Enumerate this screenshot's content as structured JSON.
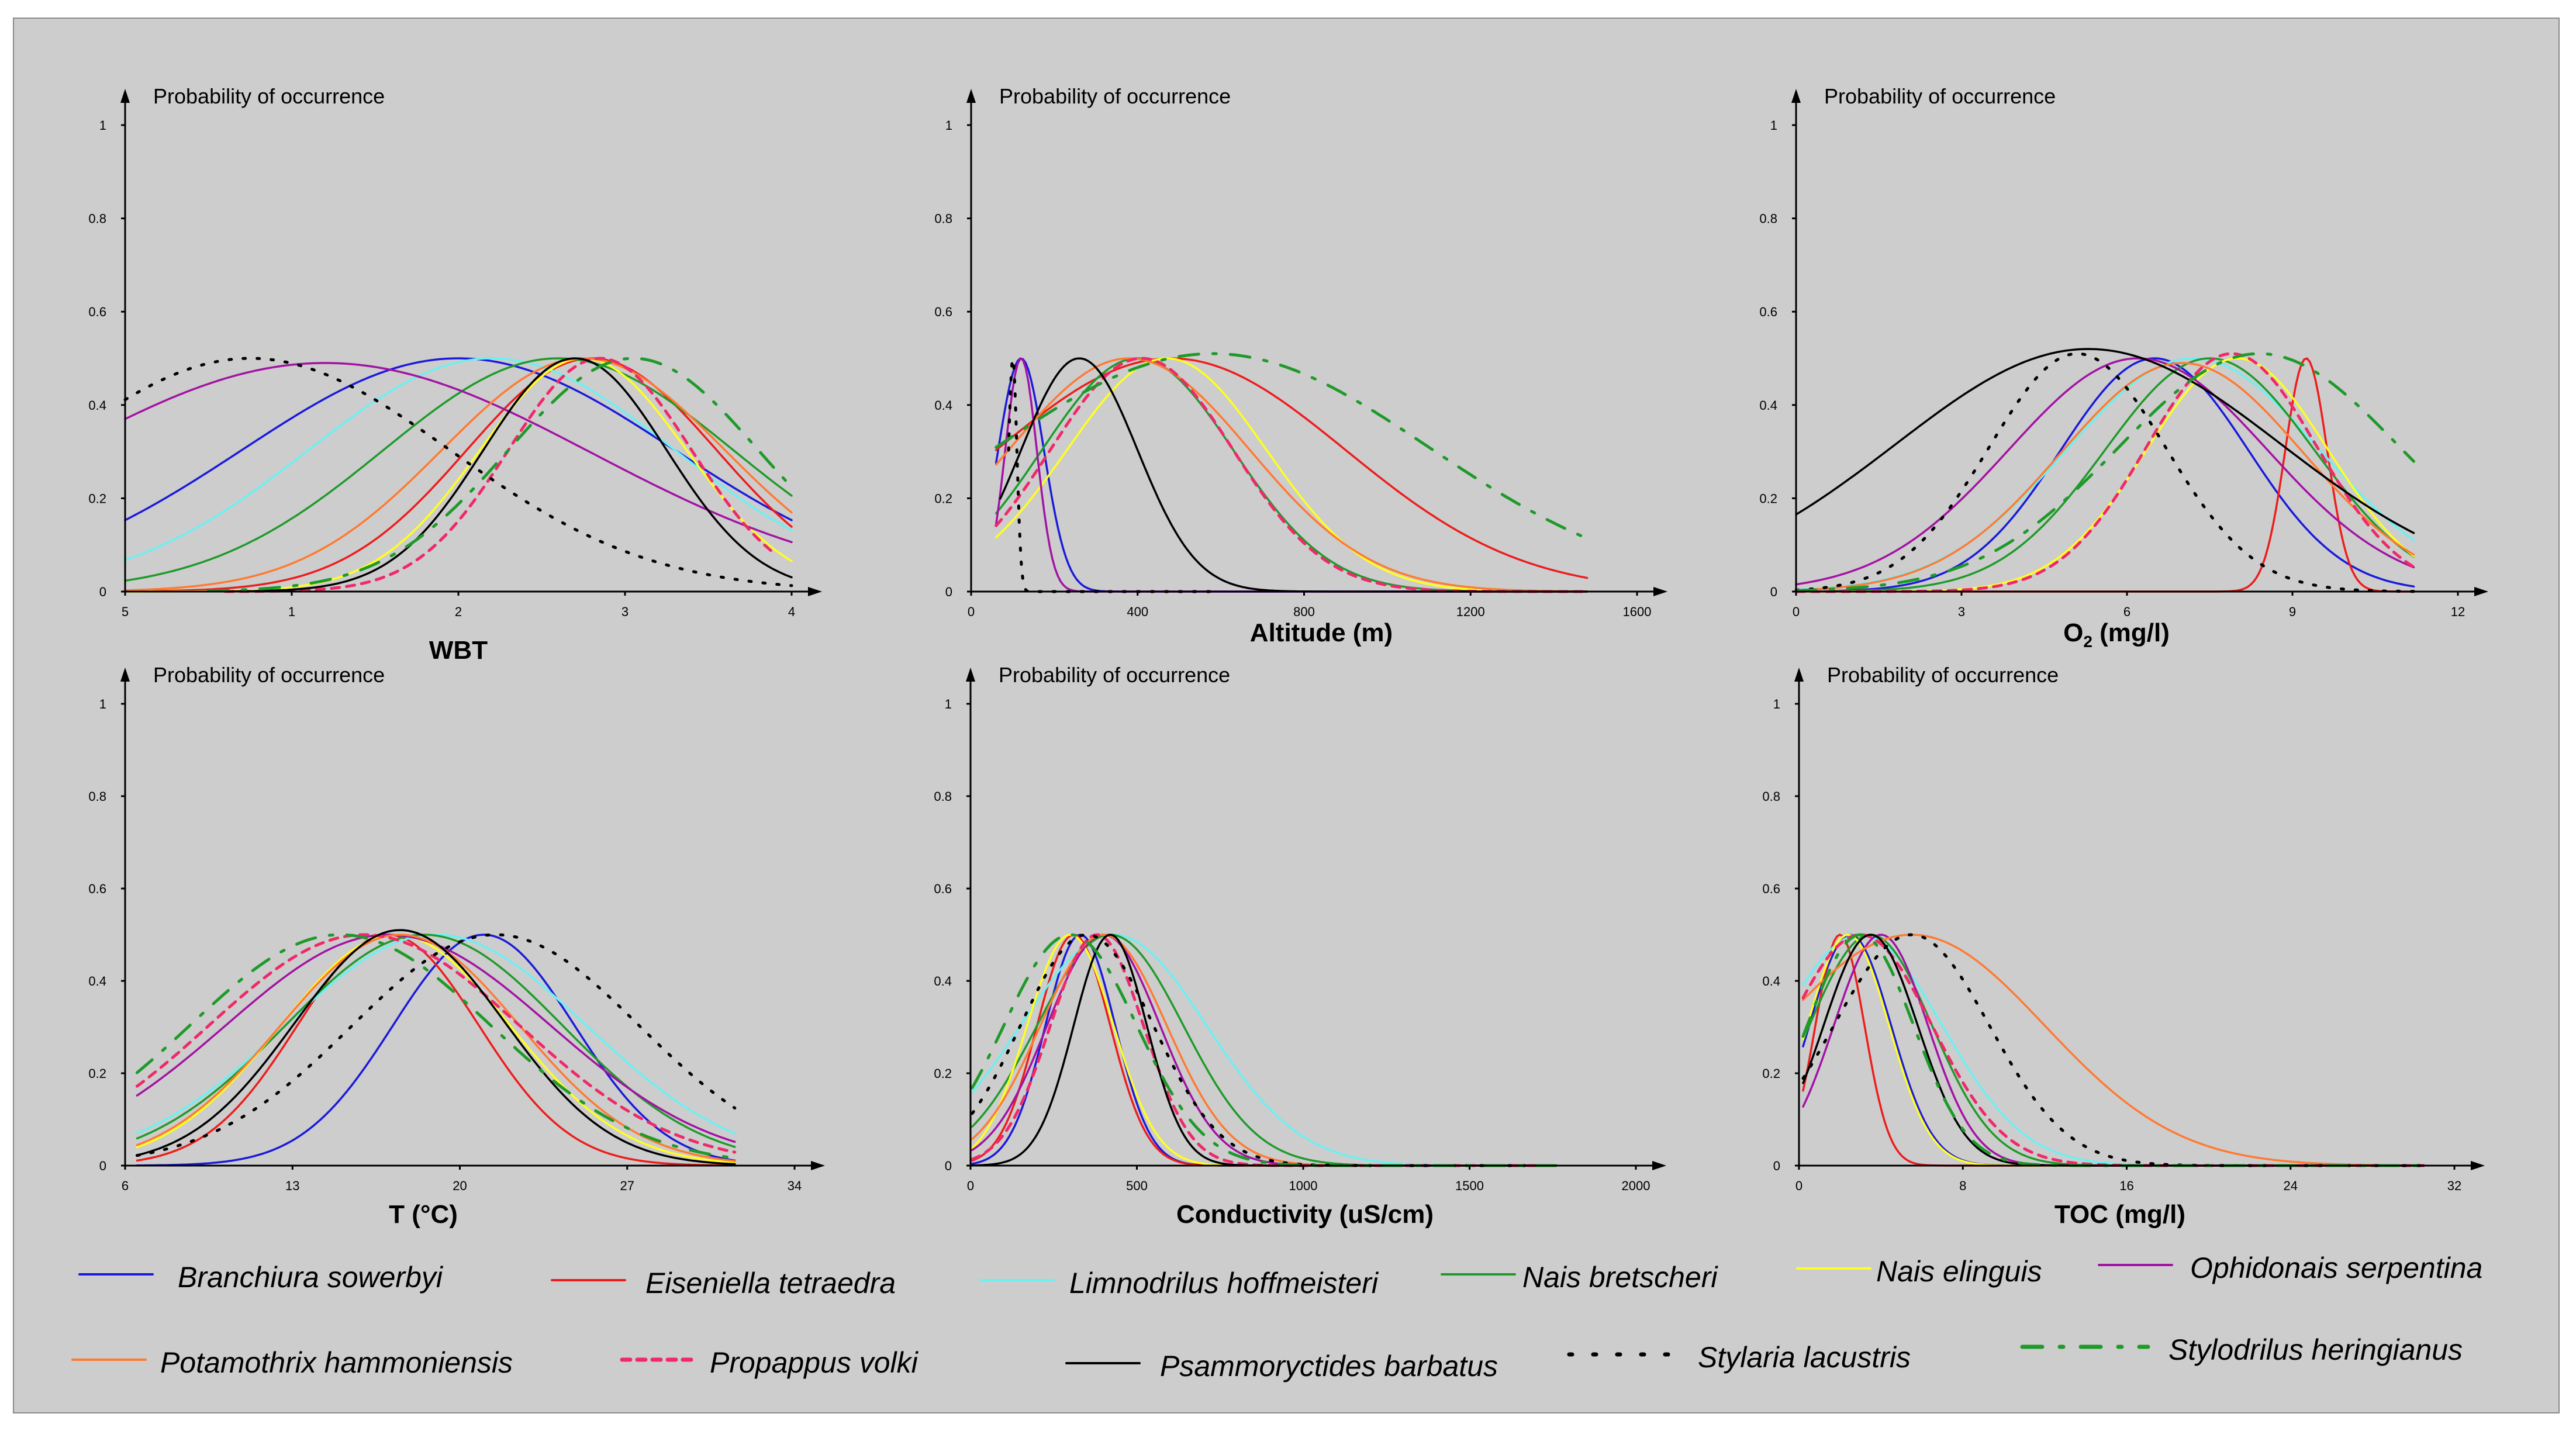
{
  "figure": {
    "y_axis_label": "Probability of occurrence",
    "legend": [
      {
        "name": "Branchiura sowerbyi",
        "color": "#1a1adb",
        "dash": "solid"
      },
      {
        "name": "Eiseniella tetraedra",
        "color": "#ee1c1c",
        "dash": "solid"
      },
      {
        "name": "Limnodrilus hoffmeisteri",
        "color": "#6cf0f2",
        "dash": "solid"
      },
      {
        "name": "Nais bretscheri",
        "color": "#1f9a2a",
        "dash": "solid"
      },
      {
        "name": "Nais elinguis",
        "color": "#ffff1f",
        "dash": "solid"
      },
      {
        "name": "Ophidonais serpentina",
        "color": "#a312a3",
        "dash": "solid"
      },
      {
        "name": "Potamothrix hammoniensis",
        "color": "#ff7a33",
        "dash": "solid"
      },
      {
        "name": "Propappus volki",
        "color": "#ee2a6a",
        "dash": "dash"
      },
      {
        "name": "Psammoryctides barbatus",
        "color": "#000000",
        "dash": "solid"
      },
      {
        "name": "Stylaria lacustris",
        "color": "#000000",
        "dash": "dot"
      },
      {
        "name": "Stylodrilus heringianus",
        "color": "#1f9a2a",
        "dash": "dashdot"
      }
    ]
  },
  "chart_data": [
    {
      "type": "line",
      "title": "",
      "xlabel": "WBT",
      "ylabel": "Probability of occurrence",
      "xlim": [
        0,
        4
      ],
      "ylim": [
        0,
        1
      ],
      "x_ticks": [
        {
          "v": 0,
          "label": "5"
        },
        {
          "v": 1,
          "label": "1"
        },
        {
          "v": 2,
          "label": "2"
        },
        {
          "v": 3,
          "label": "3"
        },
        {
          "v": 4,
          "label": "4"
        }
      ],
      "y_ticks": [
        "0",
        "0.2",
        "0.4",
        "0.6",
        "0.8",
        "1"
      ],
      "series": [
        {
          "name": "Branchiura sowerbyi",
          "x_range": [
            0,
            4
          ],
          "peak": 0.5,
          "mu": 2.0,
          "sigma": 1.3
        },
        {
          "name": "Eiseniella tetraedra",
          "x_range": [
            0,
            4
          ],
          "peak": 0.5,
          "mu": 2.8,
          "sigma": 0.75
        },
        {
          "name": "Limnodrilus hoffmeisteri",
          "x_range": [
            0,
            4
          ],
          "peak": 0.5,
          "mu": 2.2,
          "sigma": 1.1
        },
        {
          "name": "Nais bretscheri",
          "x_range": [
            0,
            4
          ],
          "peak": 0.5,
          "mu": 2.6,
          "sigma": 1.05
        },
        {
          "name": "Nais elinguis",
          "x_range": [
            0,
            4
          ],
          "peak": 0.5,
          "mu": 2.75,
          "sigma": 0.62
        },
        {
          "name": "Ophidonais serpentina",
          "x_range": [
            0,
            4
          ],
          "peak": 0.49,
          "mu": 1.2,
          "sigma": 1.6
        },
        {
          "name": "Potamothrix hammoniensis",
          "x_range": [
            0,
            4
          ],
          "peak": 0.5,
          "mu": 2.75,
          "sigma": 0.85
        },
        {
          "name": "Propappus volki",
          "x_range": [
            0.6,
            3.9
          ],
          "peak": 0.5,
          "mu": 2.85,
          "sigma": 0.55
        },
        {
          "name": "Psammoryctides barbatus",
          "x_range": [
            0.6,
            4
          ],
          "peak": 0.5,
          "mu": 2.7,
          "sigma": 0.55
        },
        {
          "name": "Stylaria lacustris",
          "x_range": [
            0,
            4
          ],
          "peak": 0.5,
          "mu": 0.75,
          "sigma": 1.2
        },
        {
          "name": "Stylodrilus heringianus",
          "x_range": [
            0.5,
            4
          ],
          "peak": 0.5,
          "mu": 3.05,
          "sigma": 0.75
        }
      ]
    },
    {
      "type": "line",
      "title": "",
      "xlabel": "Altitude (m)",
      "ylabel": "Probability of occurrence",
      "xlim": [
        0,
        1600
      ],
      "ylim": [
        0,
        1
      ],
      "x_ticks": [
        {
          "v": 0,
          "label": "0"
        },
        {
          "v": 400,
          "label": "400"
        },
        {
          "v": 800,
          "label": "800"
        },
        {
          "v": 1200,
          "label": "1200"
        },
        {
          "v": 1600,
          "label": "1600"
        }
      ],
      "y_ticks": [
        "0",
        "0.2",
        "0.4",
        "0.6",
        "0.8",
        "1"
      ],
      "series": [
        {
          "name": "Branchiura sowerbyi",
          "x_range": [
            60,
            1480
          ],
          "peak": 0.5,
          "mu": 120,
          "sigma": 55
        },
        {
          "name": "Eiseniella tetraedra",
          "x_range": [
            60,
            1480
          ],
          "peak": 0.5,
          "mu": 480,
          "sigma": 420
        },
        {
          "name": "Limnodrilus hoffmeisteri",
          "x_range": [
            60,
            1480
          ],
          "peak": 0.5,
          "mu": 400,
          "sigma": 230
        },
        {
          "name": "Nais bretscheri",
          "x_range": [
            60,
            1480
          ],
          "peak": 0.5,
          "mu": 400,
          "sigma": 230
        },
        {
          "name": "Nais elinguis",
          "x_range": [
            60,
            1480
          ],
          "peak": 0.5,
          "mu": 470,
          "sigma": 240
        },
        {
          "name": "Ophidonais serpentina",
          "x_range": [
            60,
            1480
          ],
          "peak": 0.5,
          "mu": 120,
          "sigma": 38
        },
        {
          "name": "Potamothrix hammoniensis",
          "x_range": [
            60,
            1480
          ],
          "peak": 0.5,
          "mu": 380,
          "sigma": 290
        },
        {
          "name": "Propappus volki",
          "x_range": [
            60,
            1480
          ],
          "peak": 0.5,
          "mu": 410,
          "sigma": 220
        },
        {
          "name": "Psammoryctides barbatus",
          "x_range": [
            70,
            1480
          ],
          "peak": 0.5,
          "mu": 260,
          "sigma": 140
        },
        {
          "name": "Stylaria lacustris",
          "x_range": [
            90,
            600
          ],
          "peak": 0.5,
          "mu": 100,
          "sigma": 10
        },
        {
          "name": "Stylodrilus heringianus",
          "x_range": [
            60,
            1470
          ],
          "peak": 0.51,
          "mu": 580,
          "sigma": 520
        }
      ]
    },
    {
      "type": "line",
      "title": "",
      "xlabel": "O2 (mg/l)",
      "ylabel": "Probability of occurrence",
      "xlim": [
        0,
        12
      ],
      "ylim": [
        0,
        1
      ],
      "x_ticks": [
        {
          "v": 0,
          "label": "0"
        },
        {
          "v": 3,
          "label": "3"
        },
        {
          "v": 6,
          "label": "6"
        },
        {
          "v": 9,
          "label": "9"
        },
        {
          "v": 12,
          "label": "12"
        }
      ],
      "y_ticks": [
        "0",
        "0.2",
        "0.4",
        "0.6",
        "0.8",
        "1"
      ],
      "series": [
        {
          "name": "Branchiura sowerbyi",
          "x_range": [
            0,
            11.2
          ],
          "peak": 0.5,
          "mu": 6.5,
          "sigma": 1.7
        },
        {
          "name": "Eiseniella tetraedra",
          "x_range": [
            0,
            11.2
          ],
          "peak": 0.5,
          "mu": 9.25,
          "sigma": 0.38
        },
        {
          "name": "Limnodrilus hoffmeisteri",
          "x_range": [
            0,
            11.2
          ],
          "peak": 0.5,
          "mu": 7.2,
          "sigma": 2.3
        },
        {
          "name": "Nais bretscheri",
          "x_range": [
            0,
            11.2
          ],
          "peak": 0.5,
          "mu": 7.5,
          "sigma": 1.9
        },
        {
          "name": "Nais elinguis",
          "x_range": [
            0,
            11.2
          ],
          "peak": 0.5,
          "mu": 8.0,
          "sigma": 1.65
        },
        {
          "name": "Ophidonais serpentina",
          "x_range": [
            0,
            11.2
          ],
          "peak": 0.5,
          "mu": 6.2,
          "sigma": 2.35
        },
        {
          "name": "Potamothrix hammoniensis",
          "x_range": [
            0,
            11.2
          ],
          "peak": 0.49,
          "mu": 7.0,
          "sigma": 2.2
        },
        {
          "name": "Propappus volki",
          "x_range": [
            0,
            11.2
          ],
          "peak": 0.51,
          "mu": 7.9,
          "sigma": 1.55
        },
        {
          "name": "Psammoryctides barbatus",
          "x_range": [
            0,
            11.2
          ],
          "peak": 0.52,
          "mu": 5.3,
          "sigma": 3.5
        },
        {
          "name": "Stylaria lacustris",
          "x_range": [
            0,
            11.2
          ],
          "peak": 0.51,
          "mu": 5.1,
          "sigma": 1.6
        },
        {
          "name": "Stylodrilus heringianus",
          "x_range": [
            0,
            11.2
          ],
          "peak": 0.51,
          "mu": 8.4,
          "sigma": 2.55
        }
      ]
    },
    {
      "type": "line",
      "title": "",
      "xlabel": "T (°C)",
      "ylabel": "Probability of occurrence",
      "xlim": [
        6,
        34
      ],
      "ylim": [
        0,
        1
      ],
      "x_ticks": [
        {
          "v": 6,
          "label": "6"
        },
        {
          "v": 13,
          "label": "13"
        },
        {
          "v": 20,
          "label": "20"
        },
        {
          "v": 27,
          "label": "27"
        },
        {
          "v": 34,
          "label": "34"
        }
      ],
      "y_ticks": [
        "0",
        "0.2",
        "0.4",
        "0.6",
        "0.8",
        "1"
      ],
      "series": [
        {
          "name": "Branchiura sowerbyi",
          "x_range": [
            6.5,
            31.5
          ],
          "peak": 0.5,
          "mu": 21,
          "sigma": 3.8
        },
        {
          "name": "Eiseniella tetraedra",
          "x_range": [
            6.5,
            31.5
          ],
          "peak": 0.5,
          "mu": 17,
          "sigma": 3.8
        },
        {
          "name": "Limnodrilus hoffmeisteri",
          "x_range": [
            6.5,
            31.5
          ],
          "peak": 0.5,
          "mu": 19,
          "sigma": 6.3
        },
        {
          "name": "Nais bretscheri",
          "x_range": [
            6.5,
            31.5
          ],
          "peak": 0.5,
          "mu": 18.5,
          "sigma": 5.8
        },
        {
          "name": "Nais elinguis",
          "x_range": [
            6.5,
            31.5
          ],
          "peak": 0.5,
          "mu": 17.3,
          "sigma": 4.8
        },
        {
          "name": "Ophidonais serpentina",
          "x_range": [
            6.5,
            31.5
          ],
          "peak": 0.5,
          "mu": 17,
          "sigma": 6.8
        },
        {
          "name": "Potamothrix hammoniensis",
          "x_range": [
            6.5,
            31.5
          ],
          "peak": 0.5,
          "mu": 17.5,
          "sigma": 5.0
        },
        {
          "name": "Propappus volki",
          "x_range": [
            6.5,
            31.5
          ],
          "peak": 0.5,
          "mu": 16,
          "sigma": 6.5
        },
        {
          "name": "Psammoryctides barbatus",
          "x_range": [
            6.5,
            31.5
          ],
          "peak": 0.51,
          "mu": 17.5,
          "sigma": 4.4
        },
        {
          "name": "Stylaria lacustris",
          "x_range": [
            6.5,
            31.5
          ],
          "peak": 0.5,
          "mu": 21.5,
          "sigma": 6.0
        },
        {
          "name": "Stylodrilus heringianus",
          "x_range": [
            6.5,
            31.5
          ],
          "peak": 0.5,
          "mu": 15,
          "sigma": 6.3
        }
      ]
    },
    {
      "type": "line",
      "title": "",
      "xlabel": "Conductivity (uS/cm)",
      "ylabel": "Probability of occurrence",
      "xlim": [
        0,
        2000
      ],
      "ylim": [
        0,
        1
      ],
      "x_ticks": [
        {
          "v": 0,
          "label": "0"
        },
        {
          "v": 500,
          "label": "500"
        },
        {
          "v": 1000,
          "label": "1000"
        },
        {
          "v": 1500,
          "label": "1500"
        },
        {
          "v": 2000,
          "label": "2000"
        }
      ],
      "y_ticks": [
        "0",
        "0.2",
        "0.4",
        "0.6",
        "0.8",
        "1"
      ],
      "series": [
        {
          "name": "Branchiura sowerbyi",
          "x_range": [
            5,
            1760
          ],
          "peak": 0.5,
          "mu": 330,
          "sigma": 105
        },
        {
          "name": "Eiseniella tetraedra",
          "x_range": [
            5,
            1760
          ],
          "peak": 0.5,
          "mu": 310,
          "sigma": 110
        },
        {
          "name": "Limnodrilus hoffmeisteri",
          "x_range": [
            5,
            1760
          ],
          "peak": 0.5,
          "mu": 430,
          "sigma": 280
        },
        {
          "name": "Nais bretscheri",
          "x_range": [
            5,
            1760
          ],
          "peak": 0.5,
          "mu": 420,
          "sigma": 220
        },
        {
          "name": "Nais elinguis",
          "x_range": [
            5,
            1760
          ],
          "peak": 0.5,
          "mu": 300,
          "sigma": 130
        },
        {
          "name": "Ophidonais serpentina",
          "x_range": [
            5,
            1760
          ],
          "peak": 0.5,
          "mu": 400,
          "sigma": 170
        },
        {
          "name": "Potamothrix hammoniensis",
          "x_range": [
            5,
            1760
          ],
          "peak": 0.5,
          "mu": 400,
          "sigma": 190
        },
        {
          "name": "Propappus volki",
          "x_range": [
            5,
            1760
          ],
          "peak": 0.5,
          "mu": 380,
          "sigma": 140
        },
        {
          "name": "Psammoryctides barbatus",
          "x_range": [
            5,
            1760
          ],
          "peak": 0.5,
          "mu": 420,
          "sigma": 110
        },
        {
          "name": "Stylaria lacustris",
          "x_range": [
            5,
            1760
          ],
          "peak": 0.5,
          "mu": 350,
          "sigma": 200
        },
        {
          "name": "Stylodrilus heringianus",
          "x_range": [
            5,
            1760
          ],
          "peak": 0.5,
          "mu": 300,
          "sigma": 200
        }
      ]
    },
    {
      "type": "line",
      "title": "",
      "xlabel": "TOC (mg/l)",
      "ylabel": "Probability of occurrence",
      "xlim": [
        0,
        32
      ],
      "ylim": [
        0,
        1
      ],
      "x_ticks": [
        {
          "v": 0,
          "label": "0"
        },
        {
          "v": 8,
          "label": "8"
        },
        {
          "v": 16,
          "label": "16"
        },
        {
          "v": 24,
          "label": "24"
        },
        {
          "v": 32,
          "label": "32"
        }
      ],
      "y_ticks": [
        "0",
        "0.2",
        "0.4",
        "0.6",
        "0.8",
        "1"
      ],
      "series": [
        {
          "name": "Branchiura sowerbyi",
          "x_range": [
            0.2,
            30.5
          ],
          "peak": 0.5,
          "mu": 2.5,
          "sigma": 2.0
        },
        {
          "name": "Eiseniella tetraedra",
          "x_range": [
            0.2,
            30.5
          ],
          "peak": 0.5,
          "mu": 2.0,
          "sigma": 1.2
        },
        {
          "name": "Limnodrilus hoffmeisteri",
          "x_range": [
            0.2,
            30.5
          ],
          "peak": 0.5,
          "mu": 3.0,
          "sigma": 4.0
        },
        {
          "name": "Nais bretscheri",
          "x_range": [
            0.2,
            30.5
          ],
          "peak": 0.5,
          "mu": 3.5,
          "sigma": 3.0
        },
        {
          "name": "Nais elinguis",
          "x_range": [
            0.2,
            30.5
          ],
          "peak": 0.5,
          "mu": 2.4,
          "sigma": 2.0
        },
        {
          "name": "Ophidonais serpentina",
          "x_range": [
            0.2,
            30.5
          ],
          "peak": 0.5,
          "mu": 4.0,
          "sigma": 2.3
        },
        {
          "name": "Potamothrix hammoniensis",
          "x_range": [
            0.2,
            30.5
          ],
          "peak": 0.5,
          "mu": 5.5,
          "sigma": 6.5
        },
        {
          "name": "Propappus volki",
          "x_range": [
            0.2,
            30.5
          ],
          "peak": 0.5,
          "mu": 3.0,
          "sigma": 3.5
        },
        {
          "name": "Psammoryctides barbatus",
          "x_range": [
            0.2,
            30.5
          ],
          "peak": 0.5,
          "mu": 3.5,
          "sigma": 2.3
        },
        {
          "name": "Stylaria lacustris",
          "x_range": [
            0.2,
            30.5
          ],
          "peak": 0.5,
          "mu": 5.5,
          "sigma": 3.8
        },
        {
          "name": "Stylodrilus heringianus",
          "x_range": [
            0.2,
            30.5
          ],
          "peak": 0.5,
          "mu": 3.0,
          "sigma": 2.6
        }
      ]
    }
  ]
}
